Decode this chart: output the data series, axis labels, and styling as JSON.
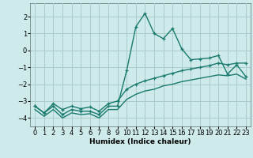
{
  "xlabel": "Humidex (Indice chaleur)",
  "background_color": "#ceeaea",
  "grid_color": "#aacccc",
  "line_color": "#1a7a6e",
  "x_values": [
    0,
    1,
    2,
    3,
    4,
    5,
    6,
    7,
    8,
    9,
    10,
    11,
    12,
    13,
    14,
    15,
    16,
    17,
    18,
    19,
    20,
    21,
    22,
    23
  ],
  "y_main": [
    -3.3,
    -3.7,
    -3.3,
    -3.8,
    -3.5,
    -3.6,
    -3.6,
    -3.8,
    -3.3,
    -3.3,
    -1.2,
    1.4,
    2.2,
    1.0,
    0.7,
    1.3,
    0.1,
    -0.55,
    -0.5,
    -0.45,
    -0.3,
    -1.4,
    -0.85,
    -1.55
  ],
  "y_upper": [
    -3.3,
    -3.7,
    -3.15,
    -3.5,
    -3.3,
    -3.45,
    -3.35,
    -3.6,
    -3.15,
    -3.0,
    -2.3,
    -2.0,
    -1.8,
    -1.65,
    -1.5,
    -1.35,
    -1.2,
    -1.1,
    -1.0,
    -0.9,
    -0.75,
    -0.85,
    -0.75,
    -0.75
  ],
  "y_lower": [
    -3.5,
    -3.9,
    -3.5,
    -4.0,
    -3.7,
    -3.8,
    -3.75,
    -4.0,
    -3.5,
    -3.5,
    -2.9,
    -2.6,
    -2.4,
    -2.3,
    -2.1,
    -2.0,
    -1.85,
    -1.75,
    -1.65,
    -1.55,
    -1.45,
    -1.5,
    -1.4,
    -1.7
  ],
  "ylim": [
    -4.5,
    2.8
  ],
  "xlim": [
    -0.5,
    23.5
  ],
  "yticks": [
    -4,
    -3,
    -2,
    -1,
    0,
    1,
    2
  ],
  "xticks": [
    0,
    1,
    2,
    3,
    4,
    5,
    6,
    7,
    8,
    9,
    10,
    11,
    12,
    13,
    14,
    15,
    16,
    17,
    18,
    19,
    20,
    21,
    22,
    23
  ],
  "linewidth": 1.0,
  "markersize": 3.5,
  "label_fontsize": 6.5,
  "tick_fontsize": 6.0
}
